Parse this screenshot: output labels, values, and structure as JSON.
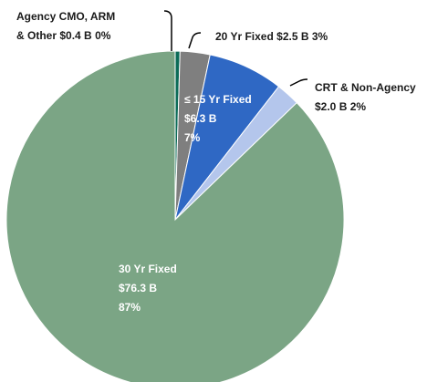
{
  "chart_data": {
    "type": "pie",
    "categories": [
      "Agency CMO, ARM & Other",
      "20 Yr Fixed",
      "≤ 15 Yr Fixed",
      "CRT & Non-Agency",
      "30 Yr Fixed"
    ],
    "values": [
      0.4,
      2.5,
      6.3,
      2.0,
      76.3
    ],
    "value_labels": [
      "$0.4 B",
      "$2.5 B",
      "$6.3 B",
      "$2.0 B",
      "$76.3 B"
    ],
    "percent_labels": [
      "0%",
      "3%",
      "7%",
      "2%",
      "87%"
    ],
    "colors": [
      "#0b6b57",
      "#7f7f7f",
      "#2f68c4",
      "#b4c6ec",
      "#7ba585"
    ]
  }
}
